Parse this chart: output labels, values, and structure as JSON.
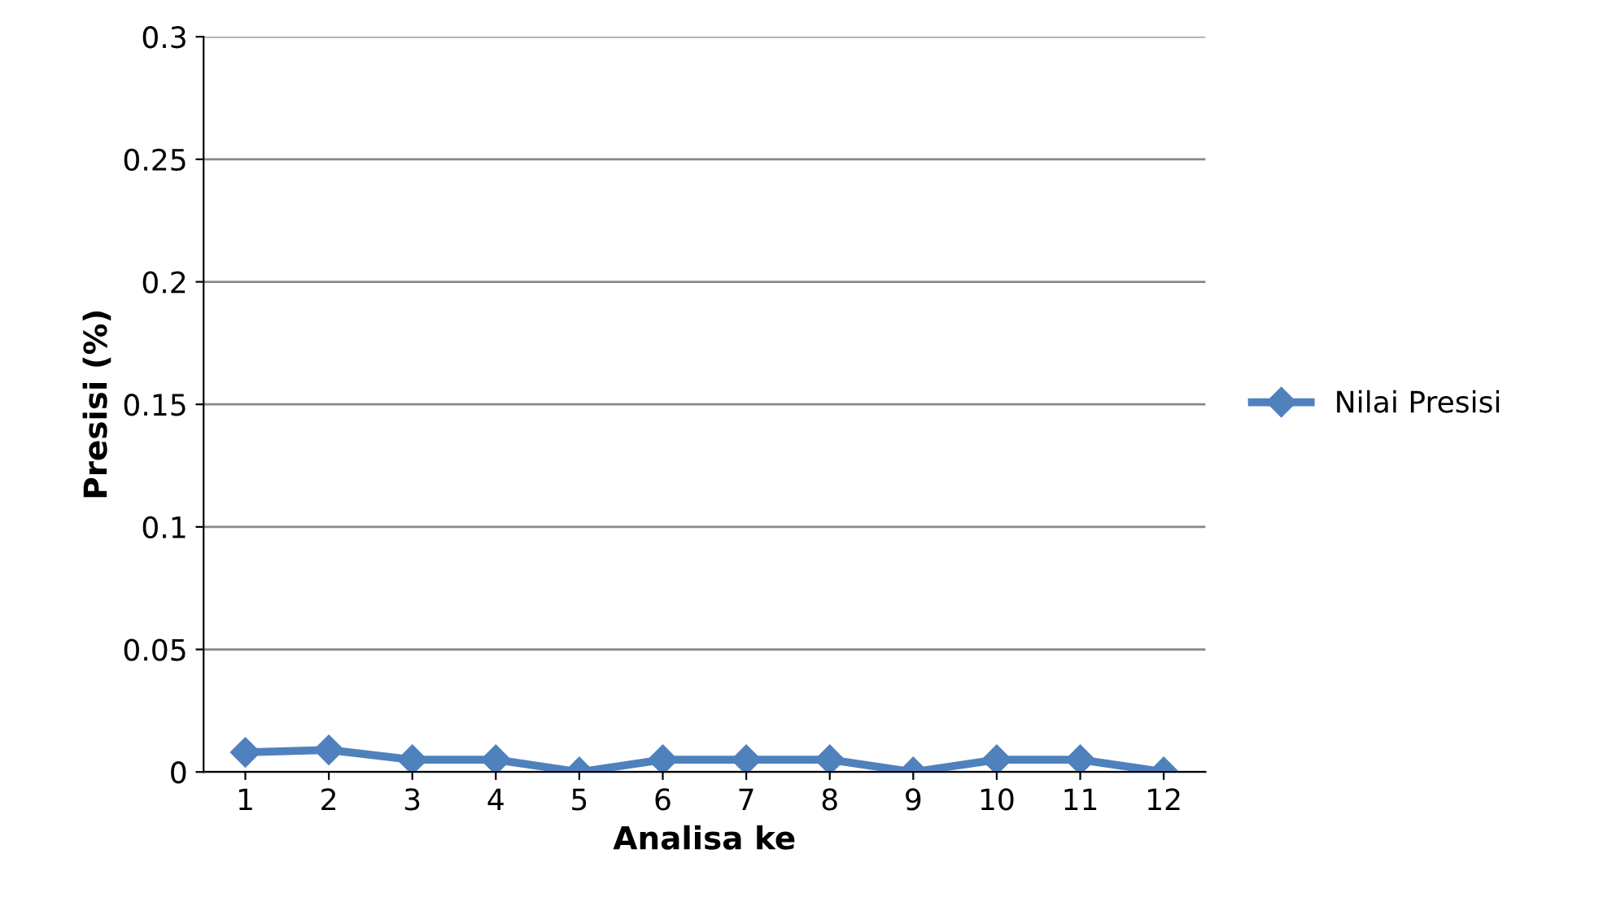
{
  "chart_data": {
    "type": "line",
    "xlabel": "Analisa ke",
    "ylabel": "Presisi (%)",
    "categories": [
      "1",
      "2",
      "3",
      "4",
      "5",
      "6",
      "7",
      "8",
      "9",
      "10",
      "11",
      "12"
    ],
    "series": [
      {
        "name": "Nilai Presisi",
        "color": "#4f81bd",
        "values": [
          0.008,
          0.009,
          0.005,
          0.005,
          0,
          0.005,
          0.005,
          0.005,
          0,
          0.005,
          0.005,
          0
        ]
      }
    ],
    "ylim": [
      0,
      0.3
    ],
    "yticks": [
      0,
      0.05,
      0.1,
      0.15,
      0.2,
      0.25,
      0.3
    ],
    "grid": "y",
    "legend": "right",
    "marker": "diamond",
    "line_style": "solid"
  }
}
